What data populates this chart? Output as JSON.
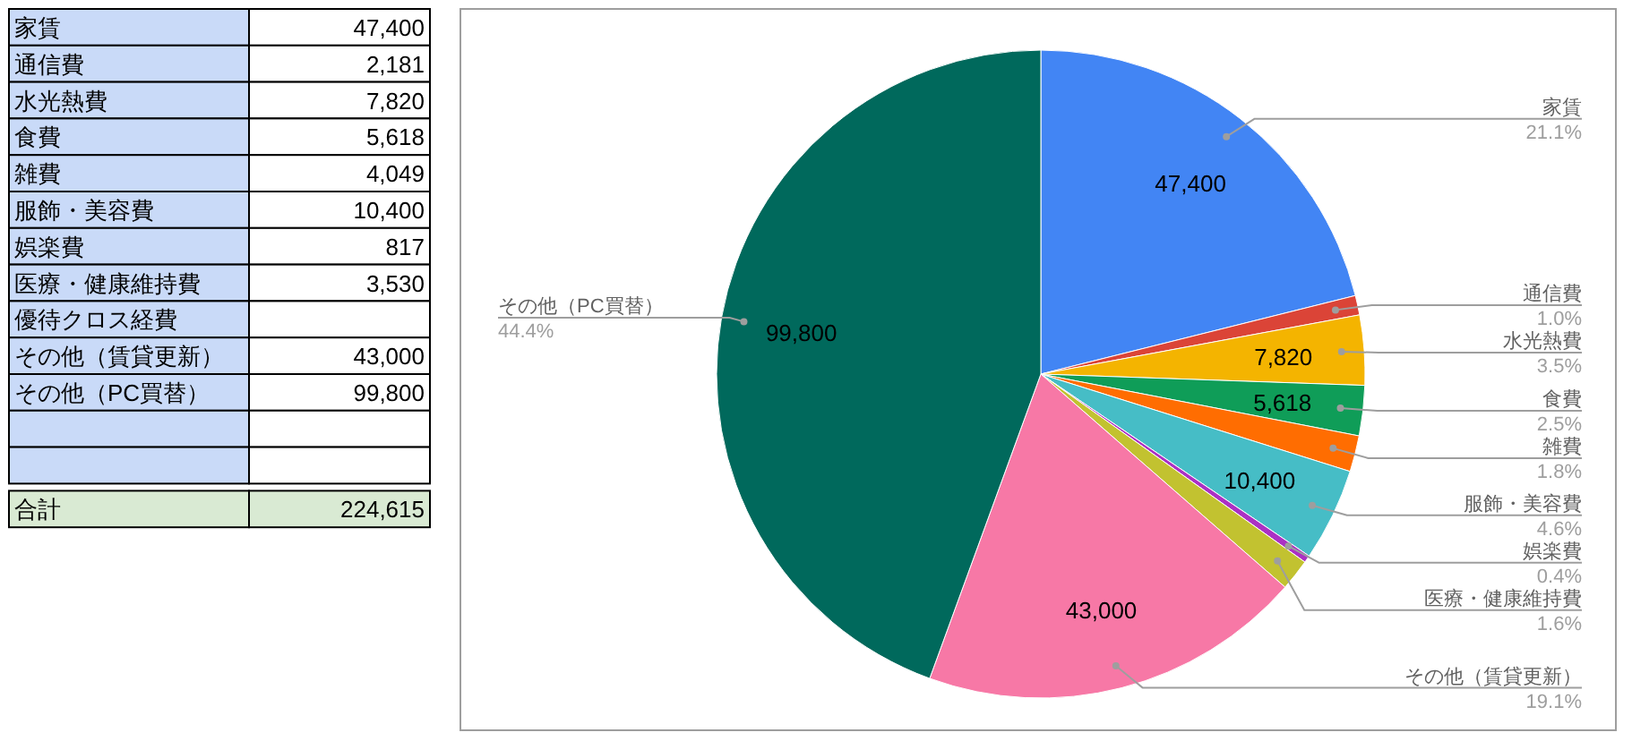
{
  "chart_data": [
    {
      "type": "other",
      "categories": [
        "家賃",
        "通信費",
        "水光熱費",
        "食費",
        "雑費",
        "服飾・美容費",
        "娯楽費",
        "医療・健康維持費",
        "優待クロス経費",
        "その他（賃貸更新）",
        "その他（PC買替）",
        null,
        null,
        "合計"
      ],
      "value_labels": [
        "47,400",
        "2,181",
        "7,820",
        "5,618",
        "4,049",
        "10,400",
        "817",
        "3,530",
        null,
        "43,000",
        "99,800",
        null,
        null,
        "224,615"
      ],
      "colors": [
        "#c9daf8",
        "#c9daf8",
        "#c9daf8",
        "#c9daf8",
        "#c9daf8",
        "#c9daf8",
        "#c9daf8",
        "#c9daf8",
        "#c9daf8",
        "#c9daf8",
        "#c9daf8",
        "#c9daf8",
        "#c9daf8",
        "#d9ead3"
      ]
    },
    {
      "type": "pie",
      "categories": [
        "家賃",
        "通信費",
        "水光熱費",
        "食費",
        "雑費",
        "服飾・美容費",
        "娯楽費",
        "医療・健康維持費",
        "その他（賃貸更新）",
        "その他（PC買替）"
      ],
      "values": [
        47400,
        2181,
        7820,
        5618,
        4049,
        10400,
        817,
        3530,
        43000,
        99800
      ],
      "colors": [
        "#4285f4",
        "#db4437",
        "#f4b400",
        "#0f9d58",
        "#ff6d01",
        "#46bdc6",
        "#ab30c4",
        "#c2c230",
        "#f778a6",
        "#00695c"
      ],
      "value_labels": [
        "47,400",
        null,
        "7,820",
        "5,618",
        null,
        "10,400",
        null,
        null,
        "43,000",
        "99,800"
      ],
      "annotations": [
        {
          "text": "21.1%",
          "x": "家賃"
        },
        {
          "text": "1.0%",
          "x": "通信費"
        },
        {
          "text": "3.5%",
          "x": "水光熱費"
        },
        {
          "text": "2.5%",
          "x": "食費"
        },
        {
          "text": "1.8%",
          "x": "雑費"
        },
        {
          "text": "4.6%",
          "x": "服飾・美容費"
        },
        {
          "text": "0.4%",
          "x": "娯楽費"
        },
        {
          "text": "1.6%",
          "x": "医療・健康維持費"
        },
        {
          "text": "19.1%",
          "x": "その他（賃貸更新）"
        },
        {
          "text": "44.4%",
          "x": "その他（PC買替）"
        }
      ]
    }
  ]
}
